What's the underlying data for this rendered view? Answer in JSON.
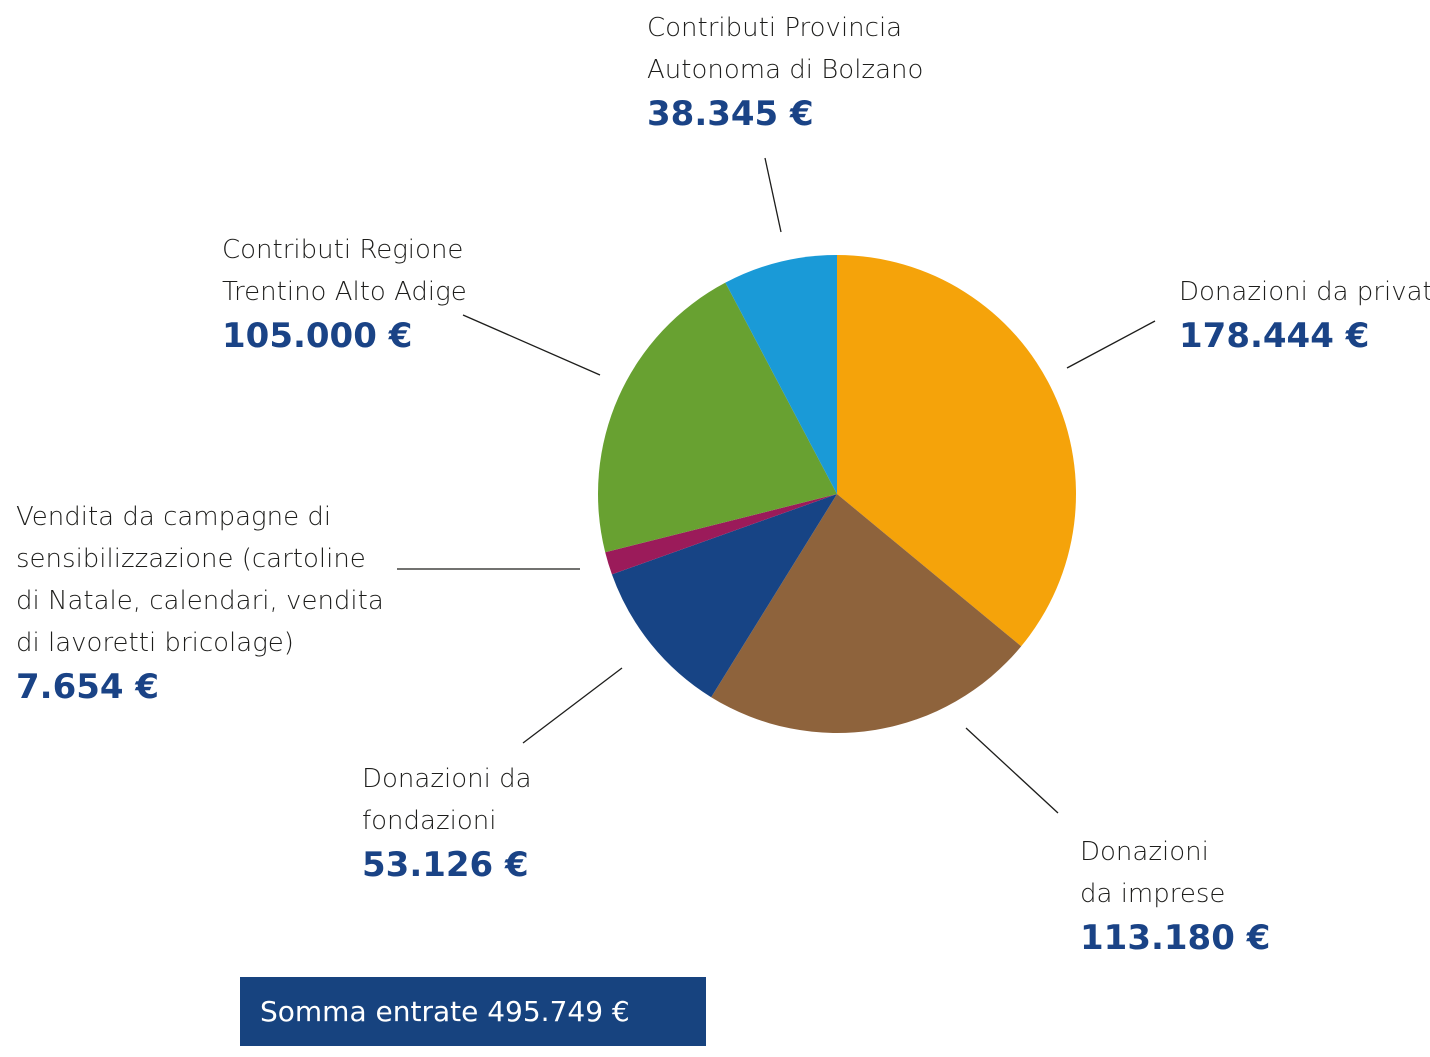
{
  "chart_data": {
    "type": "pie",
    "currency": "€",
    "slices": [
      {
        "label_lines": [
          "Donazioni da privati"
        ],
        "value": 178444,
        "value_label": "178.444 €",
        "color": "#f5a30a"
      },
      {
        "label_lines": [
          "Donazioni",
          "da imprese"
        ],
        "value": 113180,
        "value_label": "113.180 €",
        "color": "#8e633c"
      },
      {
        "label_lines": [
          "Donazioni da",
          "fondazioni"
        ],
        "value": 53126,
        "value_label": "53.126 €",
        "color": "#174485"
      },
      {
        "label_lines": [
          "Vendita da campagne di",
          "sensibilizzazione (cartoline",
          "di Natale, calendari, vendita",
          "di lavoretti bricolage)"
        ],
        "value": 7654,
        "value_label": "7.654 €",
        "color": "#9b1b5a"
      },
      {
        "label_lines": [
          "Contributi Regione",
          "Trentino Alto Adige"
        ],
        "value": 105000,
        "value_label": "105.000 €",
        "color": "#68a131"
      },
      {
        "label_lines": [
          "Contributi Provincia",
          "Autonoma di Bolzano"
        ],
        "value": 38345,
        "value_label": "38.345 €",
        "color": "#1a9ad7"
      }
    ]
  },
  "summary": {
    "total_text": "Somma entrate 495.749 €"
  }
}
